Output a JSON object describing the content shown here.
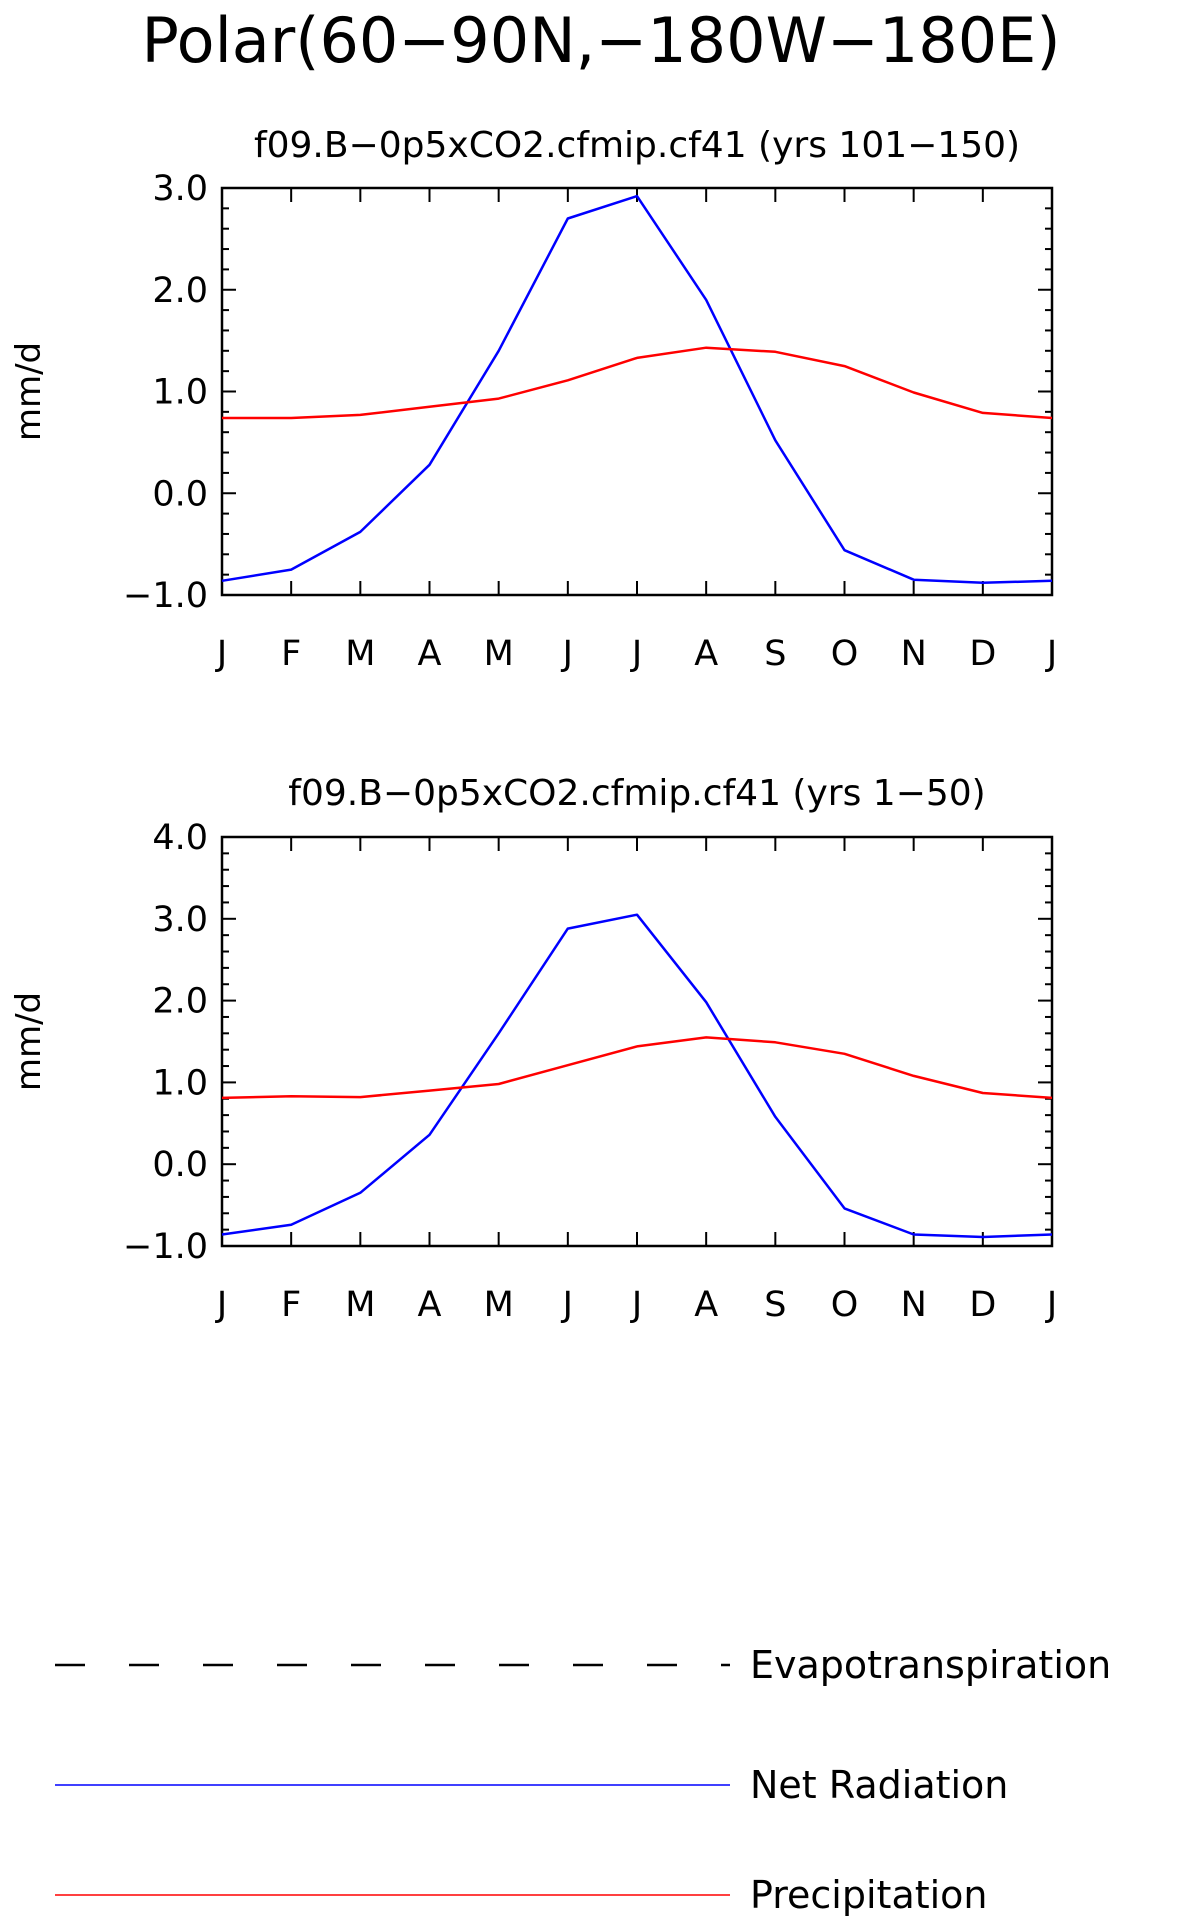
{
  "figure_title": "Polar(60−90N,−180W−180E)",
  "chart_data": [
    {
      "type": "line",
      "title": "f09.B−0p5xCO2.cfmip.cf41 (yrs 101−150)",
      "xlabel": "",
      "ylabel": "mm/d",
      "categories": [
        "J",
        "F",
        "M",
        "A",
        "M",
        "J",
        "J",
        "A",
        "S",
        "O",
        "N",
        "D",
        "J"
      ],
      "ylim": [
        -1.0,
        3.0
      ],
      "yticks": [
        -1.0,
        0.0,
        1.0,
        2.0,
        3.0
      ],
      "ytick_labels": [
        "−1.0",
        "0.0",
        "1.0",
        "2.0",
        "3.0"
      ],
      "series": [
        {
          "name": "Net Radiation",
          "color": "#0000ff",
          "values": [
            -0.86,
            -0.75,
            -0.38,
            0.28,
            1.4,
            2.7,
            2.92,
            1.9,
            0.52,
            -0.56,
            -0.85,
            -0.88,
            -0.86
          ]
        },
        {
          "name": "Precipitation",
          "color": "#ff0000",
          "values": [
            0.74,
            0.74,
            0.77,
            0.85,
            0.93,
            1.11,
            1.33,
            1.43,
            1.39,
            1.25,
            0.99,
            0.79,
            0.74
          ]
        }
      ]
    },
    {
      "type": "line",
      "title": "f09.B−0p5xCO2.cfmip.cf41 (yrs 1−50)",
      "xlabel": "",
      "ylabel": "mm/d",
      "categories": [
        "J",
        "F",
        "M",
        "A",
        "M",
        "J",
        "J",
        "A",
        "S",
        "O",
        "N",
        "D",
        "J"
      ],
      "ylim": [
        -1.0,
        4.0
      ],
      "yticks": [
        -1.0,
        0.0,
        1.0,
        2.0,
        3.0,
        4.0
      ],
      "ytick_labels": [
        "−1.0",
        "0.0",
        "1.0",
        "2.0",
        "3.0",
        "4.0"
      ],
      "series": [
        {
          "name": "Net Radiation",
          "color": "#0000ff",
          "values": [
            -0.86,
            -0.74,
            -0.35,
            0.36,
            1.6,
            2.88,
            3.05,
            1.98,
            0.58,
            -0.54,
            -0.86,
            -0.89,
            -0.86
          ]
        },
        {
          "name": "Precipitation",
          "color": "#ff0000",
          "values": [
            0.81,
            0.83,
            0.82,
            0.9,
            0.98,
            1.21,
            1.44,
            1.55,
            1.49,
            1.35,
            1.08,
            0.87,
            0.81
          ]
        }
      ]
    }
  ],
  "legend": [
    {
      "label": "Evapotranspiration",
      "color": "#000000",
      "dashed": true
    },
    {
      "label": "Net Radiation",
      "color": "#0000ff",
      "dashed": false
    },
    {
      "label": "Precipitation",
      "color": "#ff0000",
      "dashed": false
    }
  ]
}
